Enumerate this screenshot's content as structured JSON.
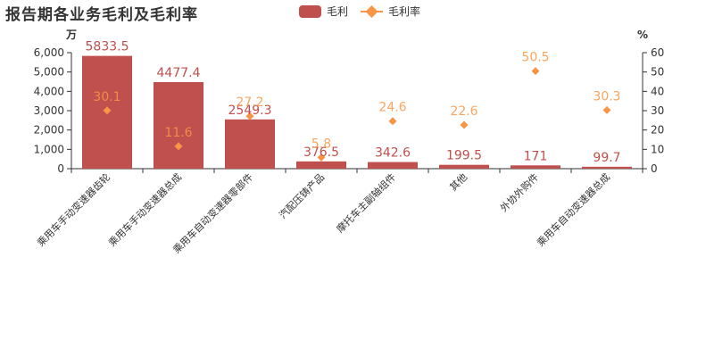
{
  "title": "报告期各业务毛利及毛利率",
  "legend": [
    {
      "name": "毛利",
      "color": "#c0504d",
      "shape": "bar"
    },
    {
      "name": "毛利率",
      "color": "#f79646",
      "shape": "diamond"
    }
  ],
  "chart_data": {
    "type": "bar",
    "categories": [
      "乘用车手动变速器齿轮",
      "乘用车手动变速器总成",
      "乘用车自动变速器零部件",
      "汽配压铸产品",
      "摩托车主副轴组件",
      "其他",
      "外协外购件",
      "乘用车自动变速器总成"
    ],
    "series": [
      {
        "name": "毛利",
        "type": "bar",
        "axis": "left",
        "color": "#c0504d",
        "values": [
          5833.5,
          4477.4,
          2549.3,
          376.5,
          342.6,
          199.5,
          171,
          99.7
        ]
      },
      {
        "name": "毛利率",
        "type": "scatter",
        "axis": "right",
        "color": "#f79646",
        "values": [
          30.1,
          11.6,
          27.2,
          5.8,
          24.6,
          22.6,
          50.5,
          30.3
        ]
      }
    ],
    "y_left": {
      "unit": "万",
      "min": 0,
      "max": 6000,
      "ticks": [
        "0",
        "1,000",
        "2,000",
        "3,000",
        "4,000",
        "5,000",
        "6,000"
      ]
    },
    "y_right": {
      "unit": "%",
      "min": 0,
      "max": 60,
      "ticks": [
        "0",
        "10",
        "20",
        "30",
        "40",
        "50",
        "60"
      ]
    },
    "bar_label_color": "#c0504d",
    "point_label_color": "#f79646",
    "grid": false,
    "legend_position": "top-center"
  }
}
